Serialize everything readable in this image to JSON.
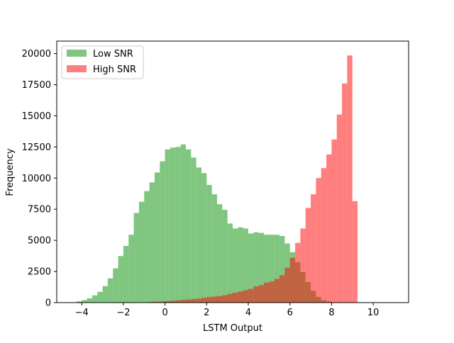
{
  "chart_data": {
    "type": "bar",
    "xlabel": "LSTM Output",
    "ylabel": "Frequency",
    "xlim": [
      -5.2,
      11.7
    ],
    "ylim": [
      0,
      21000
    ],
    "x_ticks": [
      -4,
      -2,
      0,
      2,
      4,
      6,
      8,
      10
    ],
    "y_ticks": [
      0,
      2500,
      5000,
      7500,
      10000,
      12500,
      15000,
      17500,
      20000
    ],
    "bin_width": 0.25,
    "grid": false,
    "legend_placement": "upper-left",
    "series": [
      {
        "name": "Low SNR",
        "color": "#2ca02c",
        "opacity": 0.6,
        "x_start": -4.25,
        "values": [
          100,
          200,
          350,
          580,
          870,
          1320,
          1950,
          2750,
          3740,
          4550,
          5450,
          7200,
          8100,
          8950,
          9650,
          10450,
          11350,
          12300,
          12450,
          12500,
          12700,
          12300,
          11650,
          10850,
          10400,
          9450,
          8700,
          7900,
          7450,
          6350,
          5950,
          6050,
          5950,
          5550,
          5650,
          5600,
          5450,
          5450,
          5450,
          5350,
          4750,
          4050,
          3250,
          2450,
          1650,
          950,
          450,
          200,
          100
        ]
      },
      {
        "name": "High SNR",
        "color": "#ff0000",
        "opacity": 0.5,
        "x_start": -0.75,
        "values": [
          60,
          80,
          100,
          120,
          150,
          180,
          220,
          250,
          290,
          320,
          380,
          450,
          480,
          530,
          600,
          700,
          800,
          900,
          1000,
          1100,
          1300,
          1400,
          1600,
          1700,
          1900,
          2200,
          2800,
          3600,
          4800,
          5950,
          7600,
          8700,
          10000,
          10800,
          11900,
          13100,
          15100,
          17600,
          19850,
          8150
        ]
      }
    ]
  }
}
